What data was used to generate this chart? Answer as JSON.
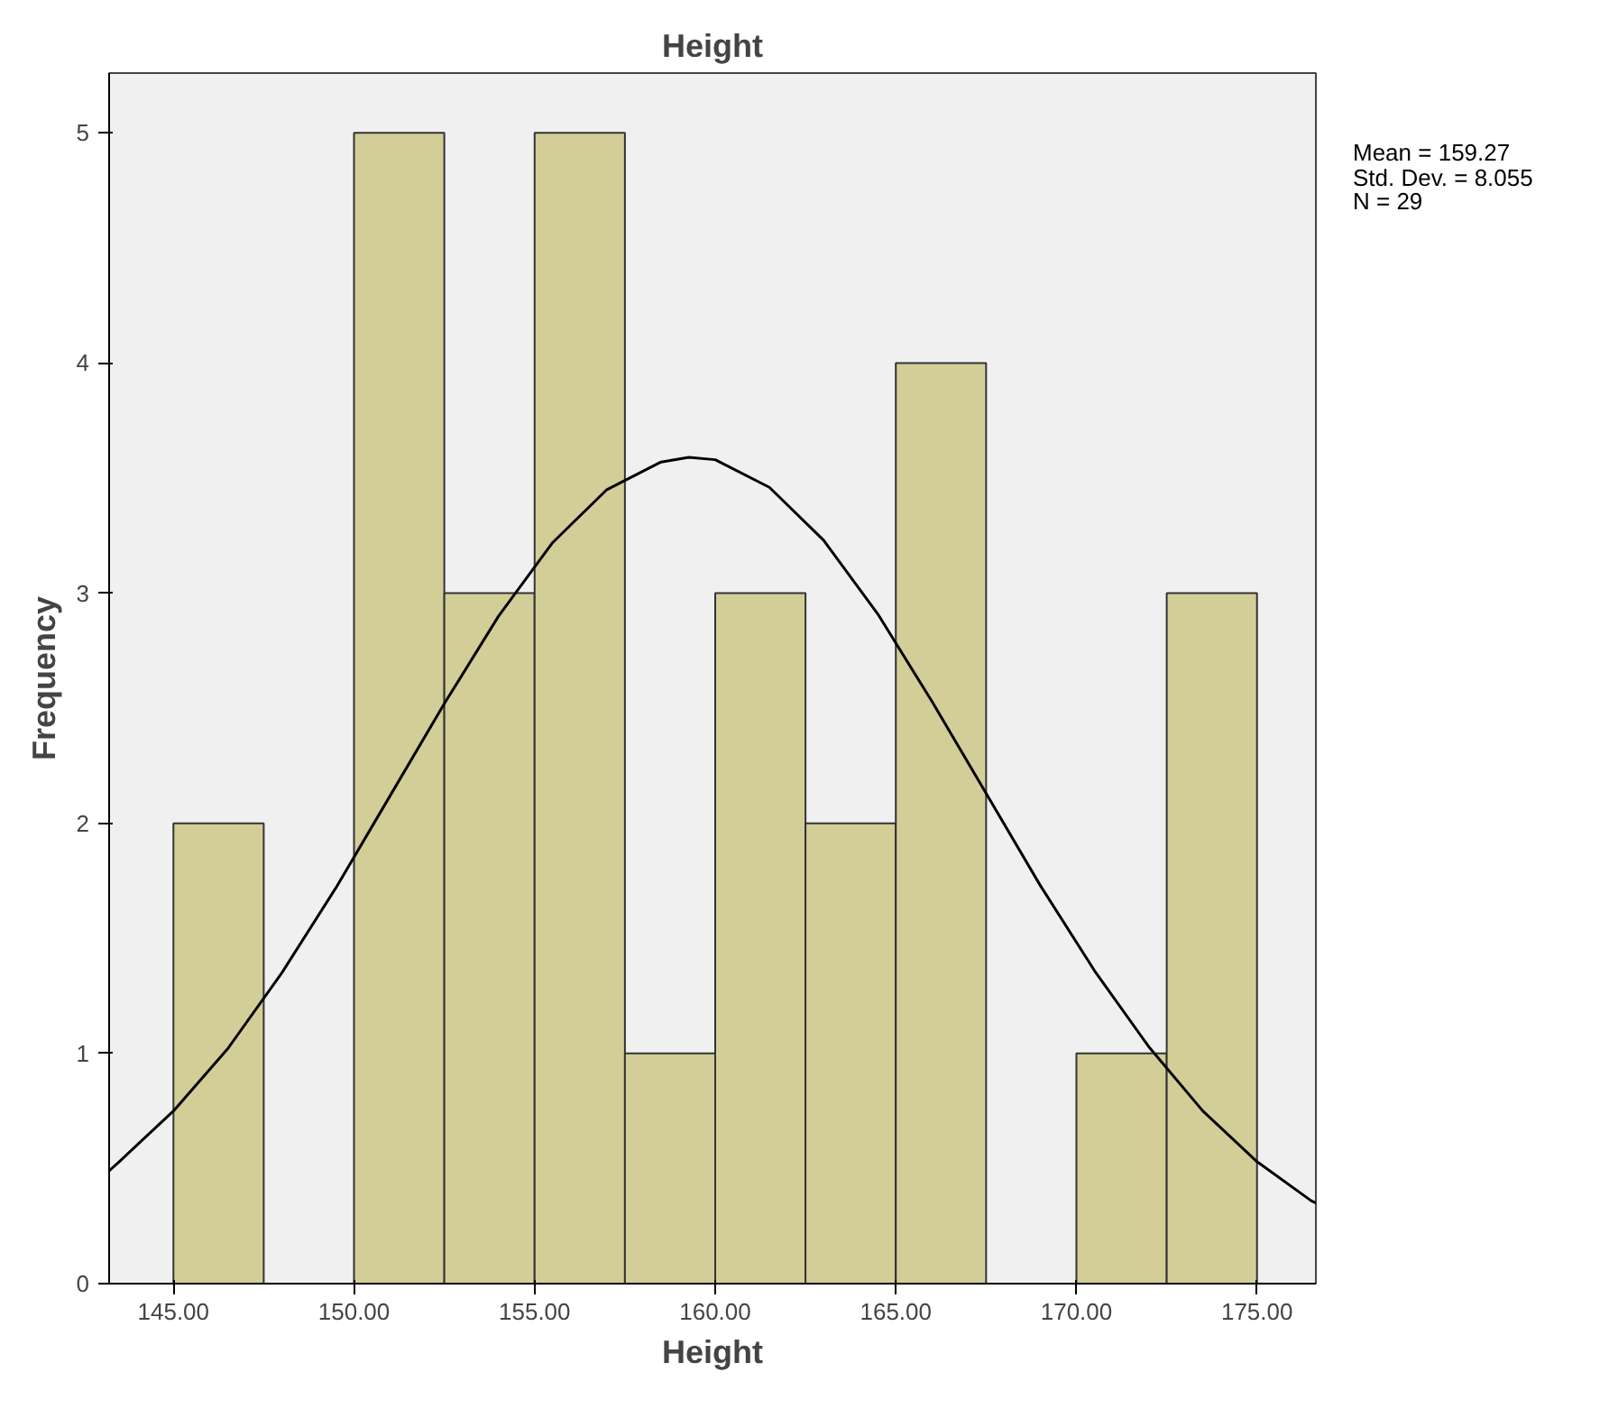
{
  "chart_data": {
    "type": "histogram",
    "title": "Height",
    "xlabel": "Height",
    "ylabel": "Frequency",
    "bins": [
      145,
      147.5,
      150,
      152.5,
      155,
      157.5,
      160,
      162.5,
      165,
      167.5,
      170,
      172.5,
      175
    ],
    "values": [
      2,
      0,
      5,
      3,
      5,
      1,
      3,
      2,
      4,
      0,
      1,
      3
    ],
    "color": "#d3ce98",
    "series": [
      {
        "type": "line",
        "color": "#000000",
        "x": [
          143.22,
          143.5,
          145,
          146.5,
          148,
          149.5,
          151,
          152.5,
          154,
          155.5,
          157,
          158.5,
          159.27,
          160,
          161.5,
          163,
          164.5,
          166,
          167.5,
          169,
          170.5,
          172,
          173.5,
          175,
          176.5,
          176.63
        ],
        "values": [
          0.49,
          0.53,
          0.75,
          1.02,
          1.35,
          1.72,
          2.12,
          2.52,
          2.9,
          3.22,
          3.45,
          3.57,
          3.59,
          3.58,
          3.46,
          3.23,
          2.91,
          2.53,
          2.13,
          1.73,
          1.36,
          1.03,
          0.75,
          0.53,
          0.36,
          0.35
        ]
      }
    ],
    "xlim": [
      143.22,
      176.63
    ],
    "ylim": [
      0,
      5.26
    ],
    "xticks": [
      {
        "value": 145,
        "label": "145.00"
      },
      {
        "value": 150,
        "label": "150.00"
      },
      {
        "value": 155,
        "label": "155.00"
      },
      {
        "value": 160,
        "label": "160.00"
      },
      {
        "value": 165,
        "label": "165.00"
      },
      {
        "value": 170,
        "label": "170.00"
      },
      {
        "value": 175,
        "label": "175.00"
      }
    ],
    "yticks": [
      0,
      1,
      2,
      3,
      4,
      5
    ],
    "grid": false,
    "annotations": [
      "Mean = 159.27",
      "Std. Dev. = 8.055",
      "N = 29"
    ]
  }
}
